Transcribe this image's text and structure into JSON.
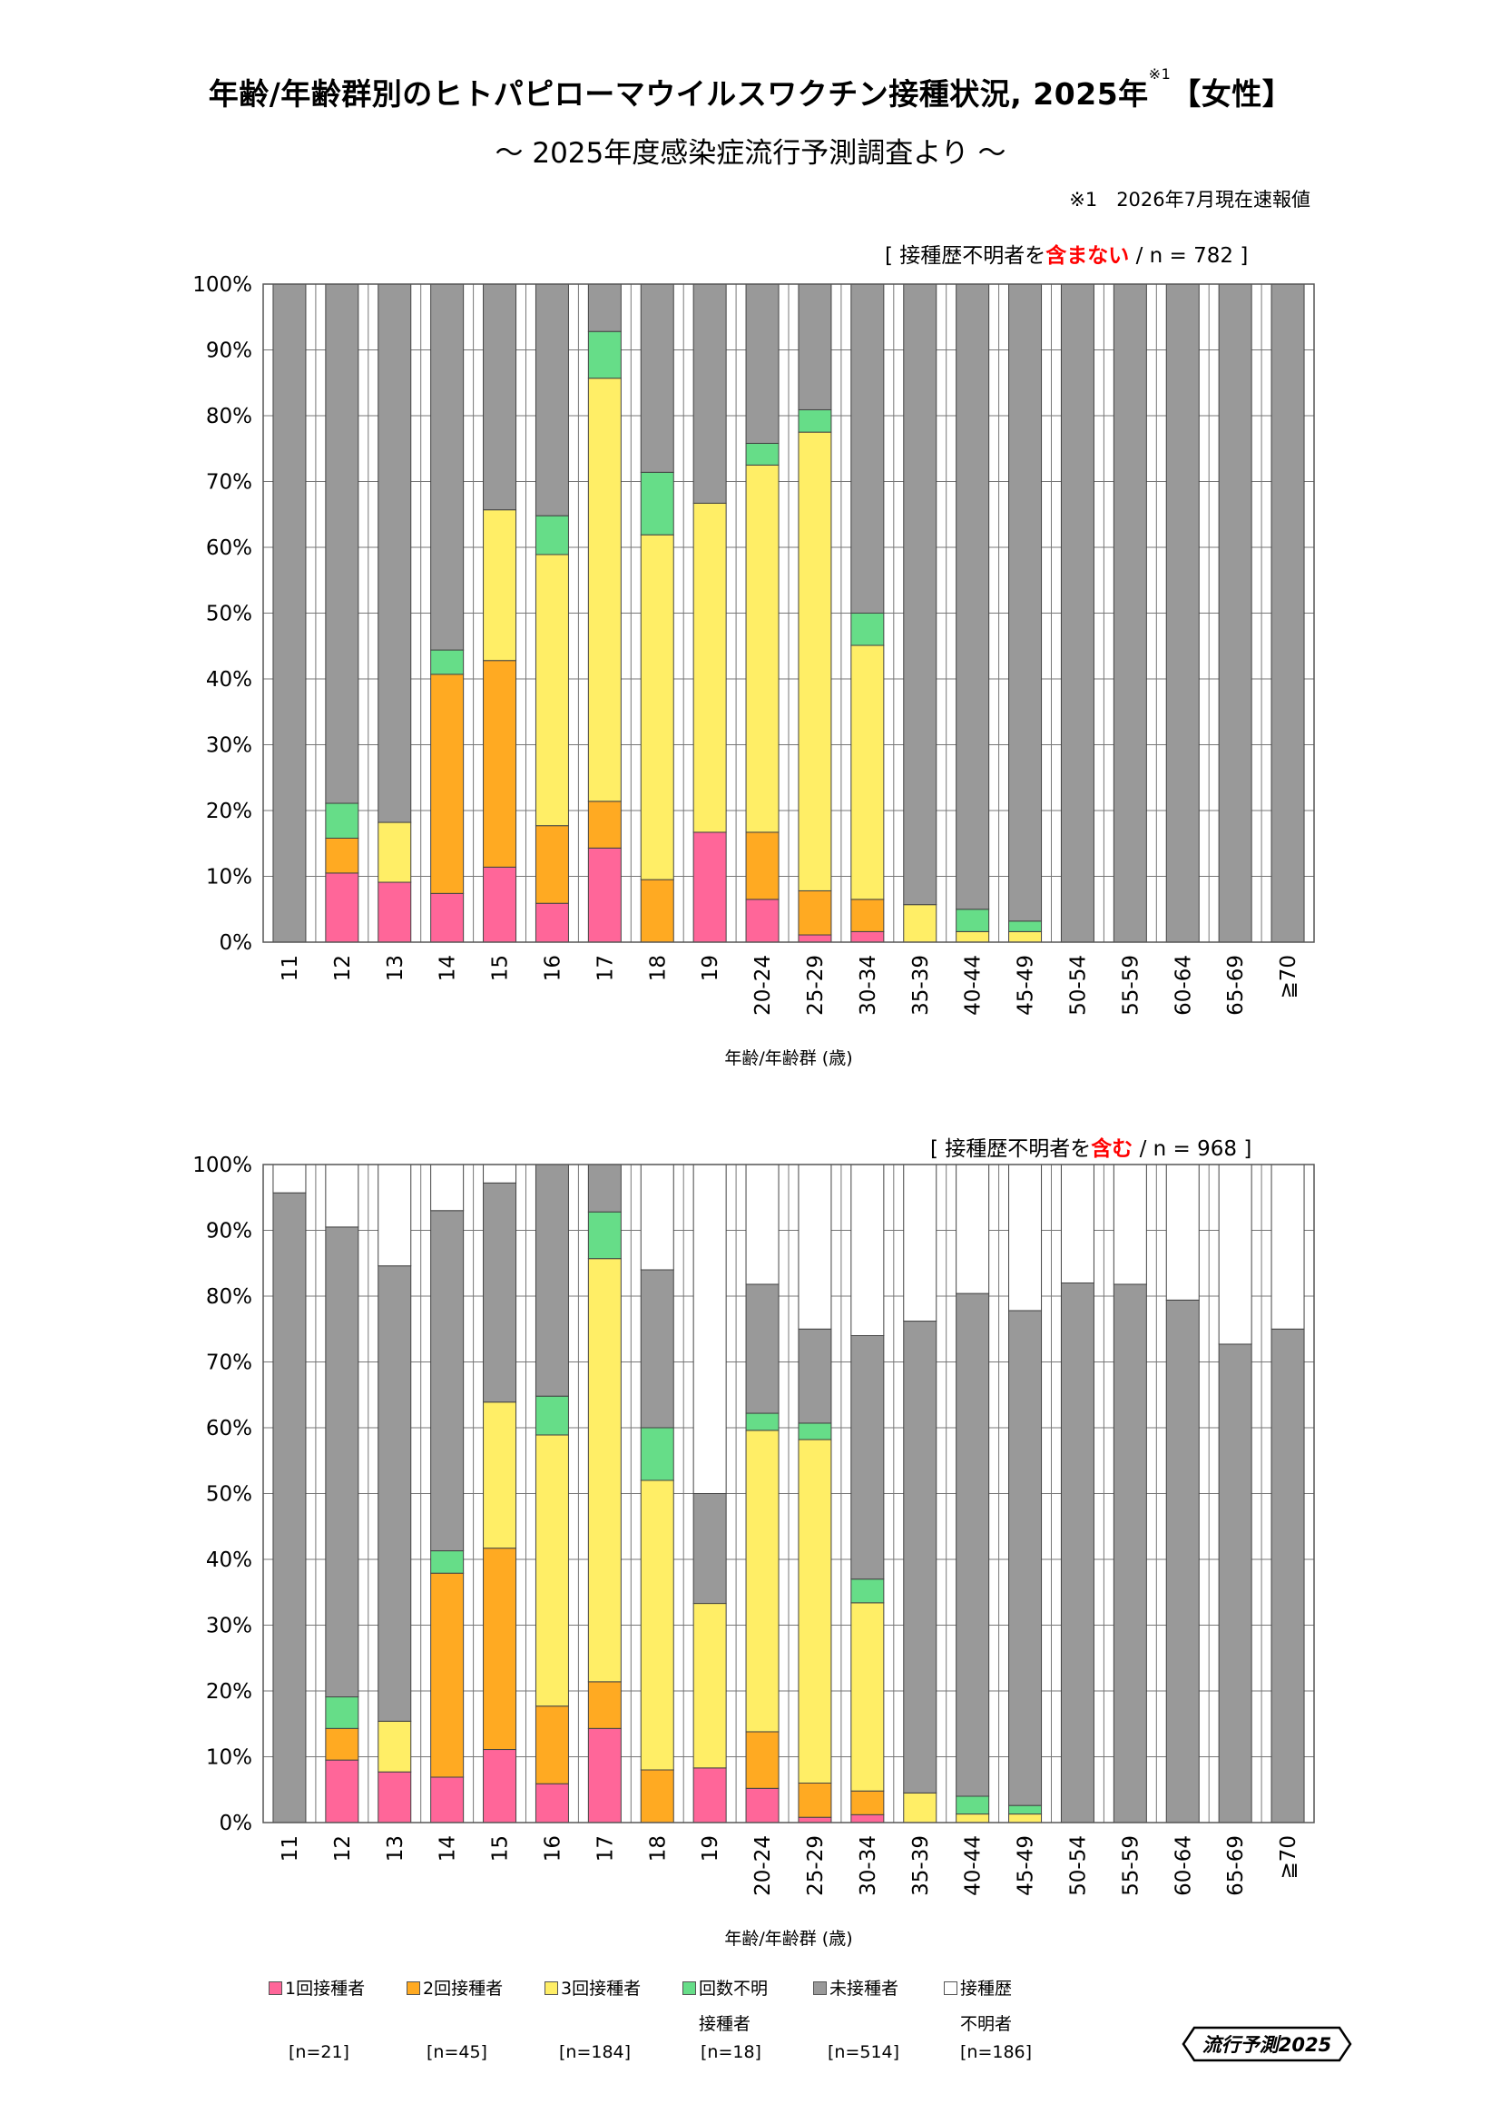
{
  "header": {
    "title": "年齢/年齢群別のヒトパピローマウイルスワクチン接種状況, 2025年",
    "title_sup": "※1",
    "title_suffix": "【女性】",
    "subtitle": "～ 2025年度感染症流行予測調査より ～",
    "note": "※1　2026年7月現在速報値"
  },
  "legend": [
    {
      "label": "1回接種者",
      "n": "[n=21]",
      "color": "#ff6699"
    },
    {
      "label": "2回接種者",
      "n": "[n=45]",
      "color": "#ffaa22"
    },
    {
      "label": "3回接種者",
      "n": "[n=184]",
      "color": "#ffee66"
    },
    {
      "label": "回数不明",
      "label2": "接種者",
      "n": "[n=18]",
      "color": "#66dd88"
    },
    {
      "label": "未接種者",
      "n": "[n=514]",
      "color": "#999999"
    },
    {
      "label": "接種歴",
      "label2": "不明者",
      "n": "[n=186]",
      "color": "#ffffff"
    }
  ],
  "logo": {
    "text": "流行予測2025"
  },
  "chart_data": [
    {
      "type": "bar",
      "stacked": true,
      "tag_prefix": "[ 接種歴不明者を",
      "tag_red": "含まない",
      "tag_suffix": " / n = 782 ]",
      "xlabel": "年齢/年齢群 (歳)",
      "ylabel": "",
      "ylim": [
        0,
        100
      ],
      "yticks": [
        "0%",
        "10%",
        "20%",
        "30%",
        "40%",
        "50%",
        "60%",
        "70%",
        "80%",
        "90%",
        "100%"
      ],
      "categories": [
        "11",
        "12",
        "13",
        "14",
        "15",
        "16",
        "17",
        "18",
        "19",
        "20-24",
        "25-29",
        "30-34",
        "35-39",
        "40-44",
        "45-49",
        "50-54",
        "55-59",
        "60-64",
        "65-69",
        "≧70"
      ],
      "series": [
        {
          "name": "1回接種者",
          "color": "#ff6699",
          "values": [
            0,
            10.5,
            9.1,
            7.4,
            11.4,
            5.9,
            14.3,
            0,
            16.7,
            6.5,
            1.1,
            1.6,
            0,
            0,
            0,
            0,
            0,
            0,
            0,
            0
          ]
        },
        {
          "name": "2回接種者",
          "color": "#ffaa22",
          "values": [
            0,
            5.3,
            0,
            33.3,
            31.4,
            11.8,
            7.1,
            9.5,
            0,
            10.2,
            6.7,
            4.9,
            0,
            0,
            0,
            0,
            0,
            0,
            0,
            0
          ]
        },
        {
          "name": "3回接種者",
          "color": "#ffee66",
          "values": [
            0,
            0,
            9.1,
            0,
            22.9,
            41.2,
            64.3,
            52.4,
            50.0,
            55.8,
            69.7,
            38.6,
            5.7,
            1.6,
            1.6,
            0,
            0,
            0,
            0,
            0
          ]
        },
        {
          "name": "回数不明接種者",
          "color": "#66dd88",
          "values": [
            0,
            5.3,
            0,
            3.7,
            0,
            5.9,
            7.1,
            9.5,
            0,
            3.3,
            3.4,
            4.9,
            0,
            3.4,
            1.6,
            0,
            0,
            0,
            0,
            0
          ]
        },
        {
          "name": "未接種者",
          "color": "#999999",
          "values": [
            100,
            78.9,
            81.8,
            55.6,
            34.3,
            35.2,
            7.2,
            28.6,
            33.3,
            24.2,
            19.1,
            50.0,
            94.3,
            95.0,
            96.8,
            100,
            100,
            100,
            100,
            100
          ]
        },
        {
          "name": "接種歴不明者",
          "color": "#ffffff",
          "values": [
            0,
            0,
            0,
            0,
            0,
            0,
            0,
            0,
            0,
            0,
            0,
            0,
            0,
            0,
            0,
            0,
            0,
            0,
            0,
            0
          ]
        }
      ]
    },
    {
      "type": "bar",
      "stacked": true,
      "tag_prefix": "[ 接種歴不明者を",
      "tag_red": "含む",
      "tag_suffix": " / n = 968 ]",
      "xlabel": "年齢/年齢群 (歳)",
      "ylabel": "",
      "ylim": [
        0,
        100
      ],
      "yticks": [
        "0%",
        "10%",
        "20%",
        "30%",
        "40%",
        "50%",
        "60%",
        "70%",
        "80%",
        "90%",
        "100%"
      ],
      "categories": [
        "11",
        "12",
        "13",
        "14",
        "15",
        "16",
        "17",
        "18",
        "19",
        "20-24",
        "25-29",
        "30-34",
        "35-39",
        "40-44",
        "45-49",
        "50-54",
        "55-59",
        "60-64",
        "65-69",
        "≧70"
      ],
      "series": [
        {
          "name": "1回接種者",
          "color": "#ff6699",
          "values": [
            0,
            9.5,
            7.7,
            6.9,
            11.1,
            5.9,
            14.3,
            0,
            8.3,
            5.2,
            0.8,
            1.2,
            0,
            0,
            0,
            0,
            0,
            0,
            0,
            0
          ]
        },
        {
          "name": "2回接種者",
          "color": "#ffaa22",
          "values": [
            0,
            4.8,
            0,
            31.0,
            30.6,
            11.8,
            7.1,
            8.0,
            0,
            8.6,
            5.2,
            3.6,
            0,
            0,
            0,
            0,
            0,
            0,
            0,
            0
          ]
        },
        {
          "name": "3回接種者",
          "color": "#ffee66",
          "values": [
            0,
            0,
            7.7,
            0,
            22.2,
            41.2,
            64.3,
            44.0,
            25.0,
            45.8,
            52.2,
            28.6,
            4.5,
            1.3,
            1.3,
            0,
            0,
            0,
            0,
            0
          ]
        },
        {
          "name": "回数不明接種者",
          "color": "#66dd88",
          "values": [
            0,
            4.8,
            0,
            3.4,
            0,
            5.9,
            7.1,
            8.0,
            0,
            2.6,
            2.5,
            3.6,
            0,
            2.7,
            1.3,
            0,
            0,
            0,
            0,
            0
          ]
        },
        {
          "name": "未接種者",
          "color": "#999999",
          "values": [
            95.7,
            71.4,
            69.2,
            51.7,
            33.3,
            35.2,
            7.2,
            24.0,
            16.7,
            19.6,
            14.3,
            37.0,
            71.7,
            76.4,
            75.2,
            82.0,
            81.8,
            79.4,
            72.7,
            75.0
          ]
        },
        {
          "name": "接種歴不明者",
          "color": "#ffffff",
          "values": [
            4.3,
            9.5,
            15.4,
            7.0,
            2.8,
            0,
            0,
            16.0,
            50.0,
            18.2,
            25.0,
            26.0,
            23.8,
            19.6,
            22.2,
            18.0,
            18.2,
            20.6,
            27.3,
            25.0
          ]
        }
      ]
    }
  ]
}
